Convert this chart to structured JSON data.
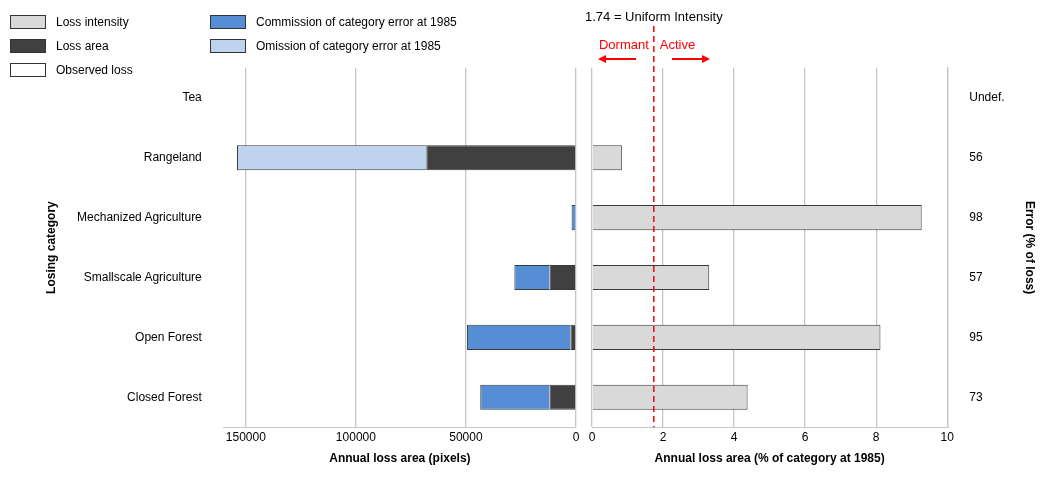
{
  "chart_data": [
    {
      "type": "bar",
      "orientation": "horizontal",
      "stacked": true,
      "categories": [
        "Tea",
        "Rangeland",
        "Mechanized Agriculture",
        "Smallscale Agriculture",
        "Open Forest",
        "Closed Forest"
      ],
      "xlabel": "Annual loss area (pixels)",
      "ylabel": "Losing category",
      "xlim": [
        160000,
        0
      ],
      "xticks": [
        150000,
        100000,
        50000,
        0
      ],
      "grid": "x",
      "legend": "top left",
      "series": [
        {
          "name": "Loss area",
          "color": "#404040",
          "values": [
            null,
            68000,
            null,
            12000,
            2500,
            12000
          ]
        },
        {
          "name": "Observed loss",
          "color": "#ffffff",
          "values": [
            null,
            null,
            null,
            null,
            null,
            null
          ]
        },
        {
          "name": "Commission of category error at 1985",
          "color": "#558ed5",
          "values": [
            null,
            null,
            2000,
            16000,
            47000,
            31500
          ]
        },
        {
          "name": "Omission of category error at 1985",
          "color": "#bdd3ee",
          "values": [
            null,
            86000,
            null,
            null,
            null,
            null
          ]
        }
      ]
    },
    {
      "type": "bar",
      "orientation": "horizontal",
      "categories": [
        "Undef.",
        "56",
        "98",
        "57",
        "95",
        "73"
      ],
      "ylabel": "Error (% of loss)",
      "xlabel": "Annual loss area (% of category at 1985)",
      "xlim": [
        0,
        10
      ],
      "xticks": [
        0,
        2,
        4,
        6,
        8,
        10
      ],
      "grid": "x",
      "legend": "top left",
      "ref_lines": [
        {
          "axis": "x",
          "value": 1.74,
          "label": "1.74 = Uniform Intensity",
          "color": "#ff0000",
          "line_style": "dashed"
        }
      ],
      "annotations": [
        "Dormant",
        "Active"
      ],
      "series": [
        {
          "name": "Loss intensity",
          "color": "#d9d9d9",
          "values": [
            null,
            0.84,
            9.28,
            3.3,
            8.12,
            4.38
          ]
        }
      ]
    }
  ]
}
